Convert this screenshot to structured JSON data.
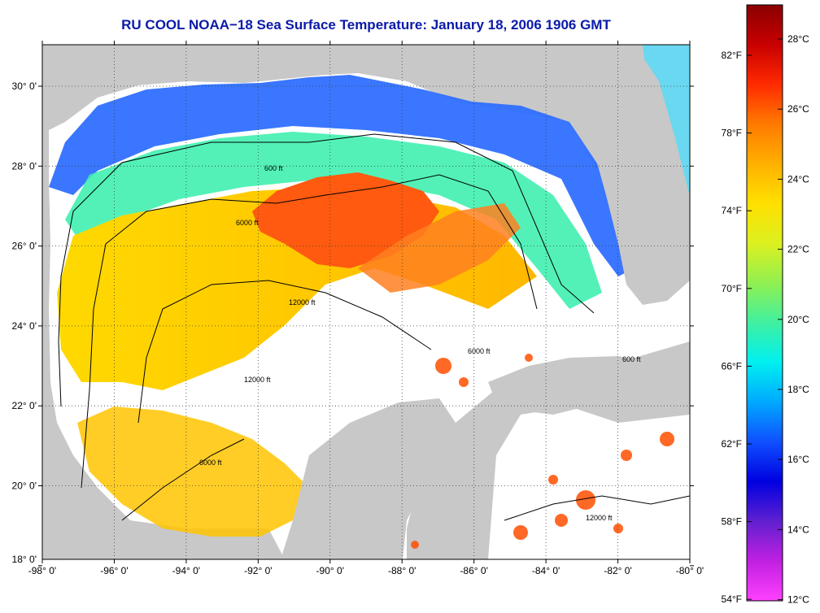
{
  "title": "RU COOL  NOAA−18  Sea Surface Temperature:  January 18, 2006 1906 GMT",
  "lon_ticks": [
    "-98° 0'",
    "-96° 0'",
    "-94° 0'",
    "-92° 0'",
    "-90° 0'",
    "-88° 0'",
    "-86° 0'",
    "-84° 0'",
    "-82° 0'",
    "-80° 0'"
  ],
  "lat_ticks": [
    "30° 0'",
    "28° 0'",
    "26° 0'",
    "24° 0'",
    "22° 0'",
    "20° 0'",
    "18° 0'"
  ],
  "fahrenheit_ticks": [
    "82°F",
    "78°F",
    "74°F",
    "70°F",
    "66°F",
    "62°F",
    "58°F",
    "54°F"
  ],
  "celsius_ticks": [
    "28°C",
    "26°C",
    "24°C",
    "22°C",
    "20°C",
    "18°C",
    "16°C",
    "14°C",
    "12°C"
  ],
  "contour_labels": {
    "c600": "600 ft",
    "c6000": "6000 ft",
    "c12000": "12000 ft"
  },
  "colors": {
    "land": "#c8c8c8",
    "no_data": "#ffffff",
    "title": "#0a1aa8"
  },
  "colorbar_gradient": [
    "#8b0000",
    "#c80000",
    "#ff2a00",
    "#ff7a00",
    "#ffb000",
    "#ffe000",
    "#dcf020",
    "#90f050",
    "#40f0a0",
    "#00f0f0",
    "#00a8ff",
    "#1050ff",
    "#0000e0",
    "#6020d0",
    "#c020e0",
    "#ff40ff"
  ]
}
